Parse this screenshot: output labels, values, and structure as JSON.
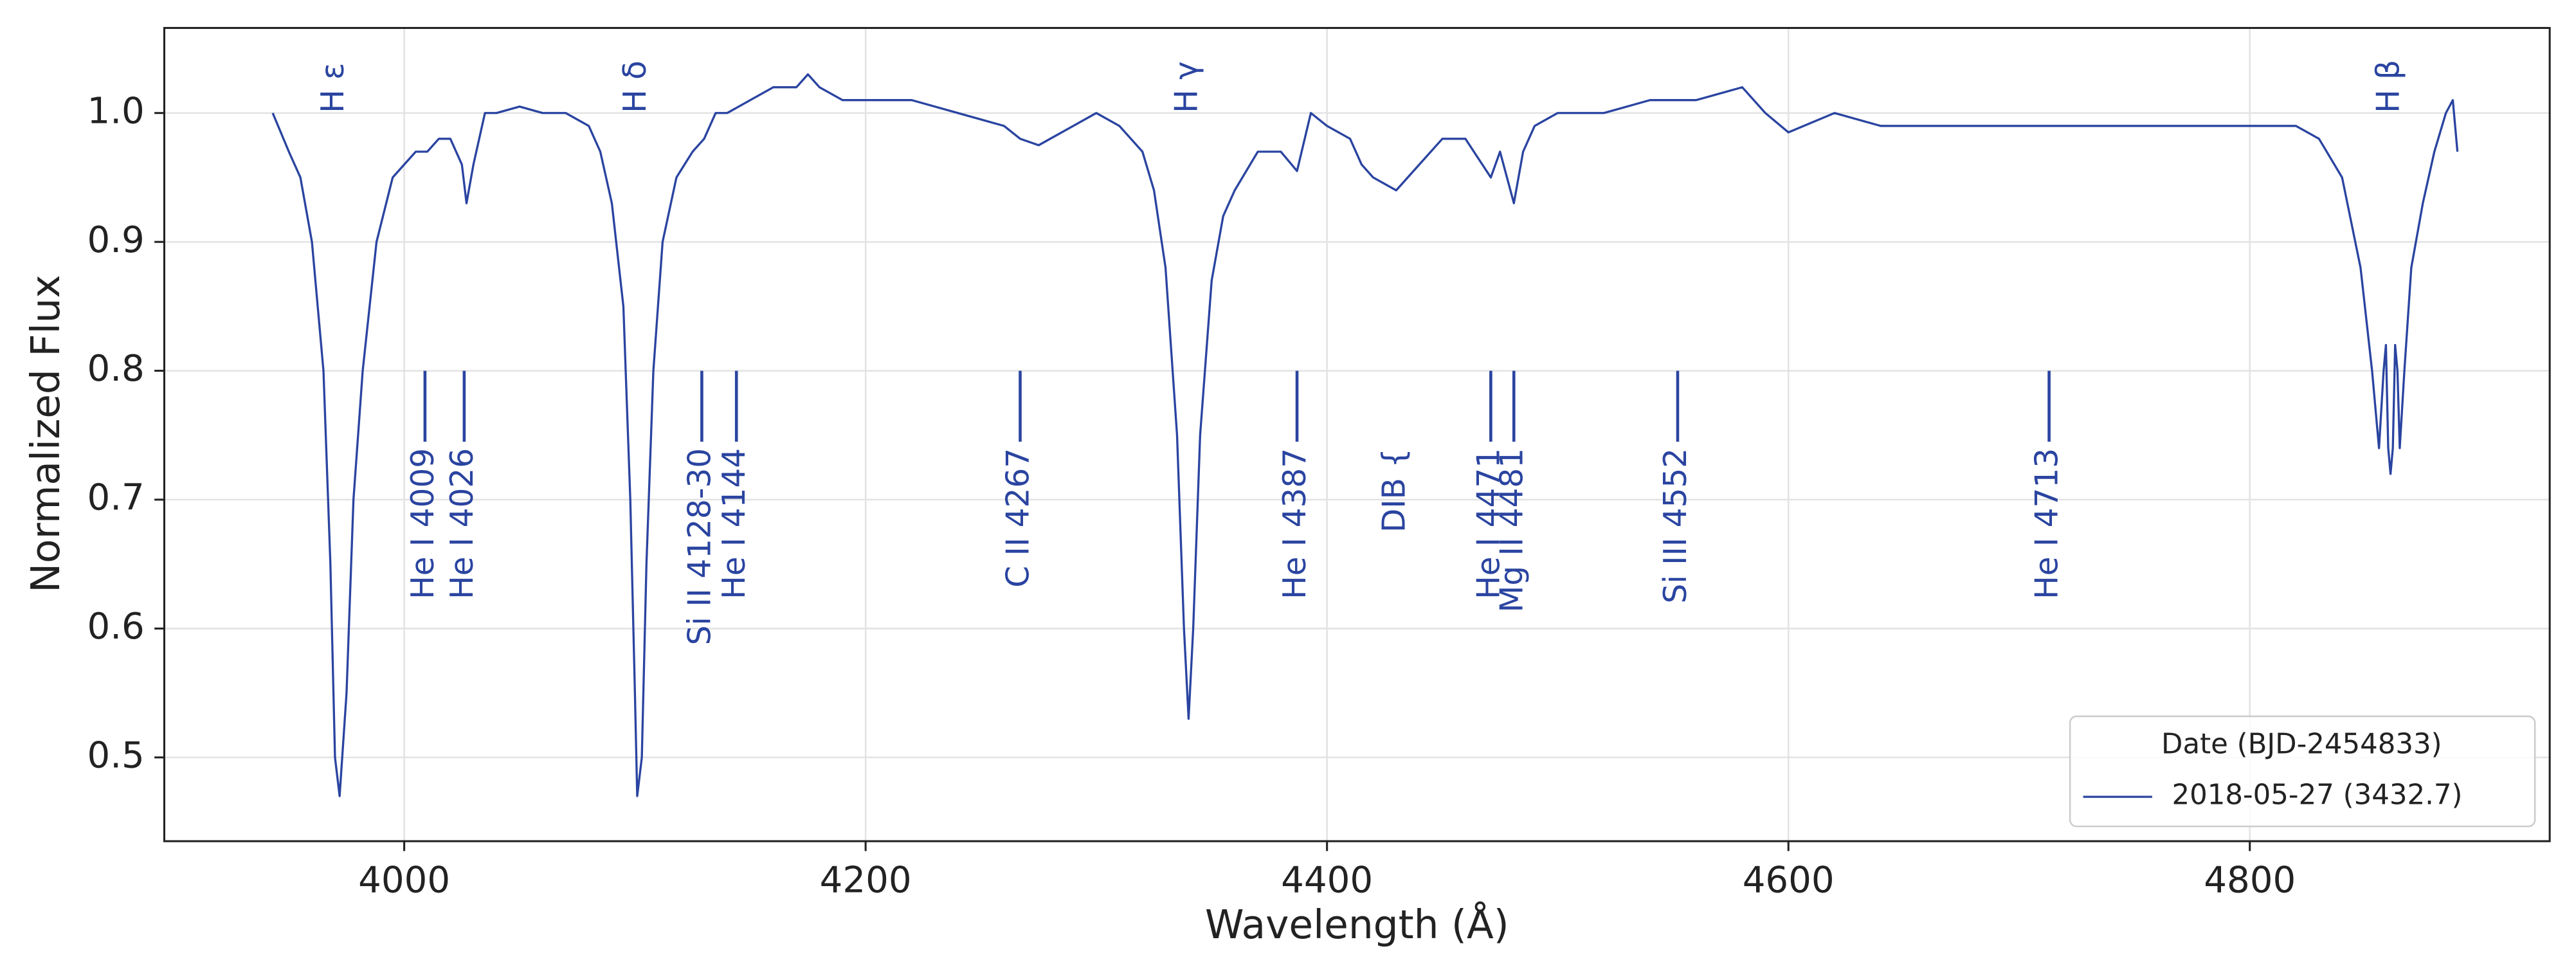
{
  "chart_data": {
    "type": "line",
    "xlabel": "Wavelength (Å)",
    "ylabel": "Normalized Flux",
    "xlim": [
      3896,
      4930
    ],
    "ylim": [
      0.435,
      1.066
    ],
    "xticks": [
      4000,
      4200,
      4400,
      4600,
      4800
    ],
    "yticks": [
      0.5,
      0.6,
      0.7,
      0.8,
      0.9,
      {
        "value": 1.0,
        "label": "1.0"
      }
    ],
    "grid": true,
    "legend": {
      "title": "Date (BJD-2454833)",
      "position": "lower right"
    },
    "series": [
      {
        "name": "2018-05-27 (3432.7)",
        "color": "#2a44a0",
        "x": [
          3943,
          3950,
          3955,
          3960,
          3965,
          3968,
          3970,
          3972,
          3975,
          3978,
          3982,
          3988,
          3995,
          4000,
          4005,
          4010,
          4015,
          4020,
          4025,
          4027,
          4030,
          4035,
          4040,
          4050,
          4060,
          4070,
          4080,
          4085,
          4090,
          4095,
          4098,
          4100,
          4101,
          4103,
          4105,
          4108,
          4112,
          4118,
          4125,
          4130,
          4135,
          4140,
          4150,
          4160,
          4170,
          4175,
          4180,
          4190,
          4200,
          4220,
          4240,
          4260,
          4267,
          4275,
          4290,
          4300,
          4310,
          4320,
          4325,
          4330,
          4335,
          4338,
          4340,
          4342,
          4345,
          4350,
          4355,
          4360,
          4370,
          4380,
          4387,
          4393,
          4400,
          4410,
          4415,
          4420,
          4430,
          4440,
          4450,
          4460,
          4471,
          4475,
          4478,
          4481,
          4485,
          4490,
          4500,
          4520,
          4540,
          4560,
          4580,
          4590,
          4600,
          4620,
          4640,
          4660,
          4700,
          4720,
          4760,
          4800,
          4820,
          4830,
          4840,
          4848,
          4853,
          4856,
          4858,
          4859,
          4860,
          4861,
          4862,
          4863,
          4864,
          4865,
          4867,
          4870,
          4875,
          4880,
          4885,
          4888,
          4890
        ],
        "values": [
          1.0,
          0.97,
          0.95,
          0.9,
          0.8,
          0.65,
          0.5,
          0.47,
          0.55,
          0.7,
          0.8,
          0.9,
          0.95,
          0.96,
          0.97,
          0.97,
          0.98,
          0.98,
          0.96,
          0.93,
          0.96,
          1.0,
          1.0,
          1.005,
          1.0,
          1.0,
          0.99,
          0.97,
          0.93,
          0.85,
          0.7,
          0.55,
          0.47,
          0.5,
          0.65,
          0.8,
          0.9,
          0.95,
          0.97,
          0.98,
          1.0,
          1.0,
          1.01,
          1.02,
          1.02,
          1.03,
          1.02,
          1.01,
          1.01,
          1.01,
          1.0,
          0.99,
          0.98,
          0.975,
          0.99,
          1.0,
          0.99,
          0.97,
          0.94,
          0.88,
          0.75,
          0.6,
          0.53,
          0.6,
          0.75,
          0.87,
          0.92,
          0.94,
          0.97,
          0.97,
          0.955,
          1.0,
          0.99,
          0.98,
          0.96,
          0.95,
          0.94,
          0.96,
          0.98,
          0.98,
          0.95,
          0.97,
          0.95,
          0.93,
          0.97,
          0.99,
          1.0,
          1.0,
          1.01,
          1.01,
          1.02,
          1.0,
          0.985,
          1.0,
          0.99,
          0.99,
          0.99,
          0.99,
          0.99,
          0.99,
          0.99,
          0.98,
          0.95,
          0.88,
          0.8,
          0.74,
          0.8,
          0.82,
          0.74,
          0.72,
          0.74,
          0.82,
          0.8,
          0.74,
          0.8,
          0.88,
          0.93,
          0.97,
          1.0,
          1.01,
          0.97
        ]
      }
    ],
    "balmer_labels": [
      {
        "text": "H ε",
        "x": 3970
      },
      {
        "text": "H δ",
        "x": 4101
      },
      {
        "text": "H γ",
        "x": 4340
      },
      {
        "text": "H β",
        "x": 4861
      }
    ],
    "line_ids": [
      {
        "text": "He I 4009",
        "x": 4009,
        "tick": true
      },
      {
        "text": "He I 4026",
        "x": 4026,
        "tick": true
      },
      {
        "text": "Si II 4128-30",
        "x": 4129,
        "tick": true
      },
      {
        "text": "He I 4144",
        "x": 4144,
        "tick": true
      },
      {
        "text": "C II 4267",
        "x": 4267,
        "tick": true
      },
      {
        "text": "He I 4387",
        "x": 4387,
        "tick": true
      },
      {
        "text": "DIB {",
        "x": 4430,
        "tick": false
      },
      {
        "text": "He I 4471",
        "x": 4471,
        "tick": true
      },
      {
        "text": "Mg II 4481",
        "x": 4481,
        "tick": true
      },
      {
        "text": "Si III 4552",
        "x": 4552,
        "tick": true
      },
      {
        "text": "He I 4713",
        "x": 4713,
        "tick": true
      }
    ]
  }
}
